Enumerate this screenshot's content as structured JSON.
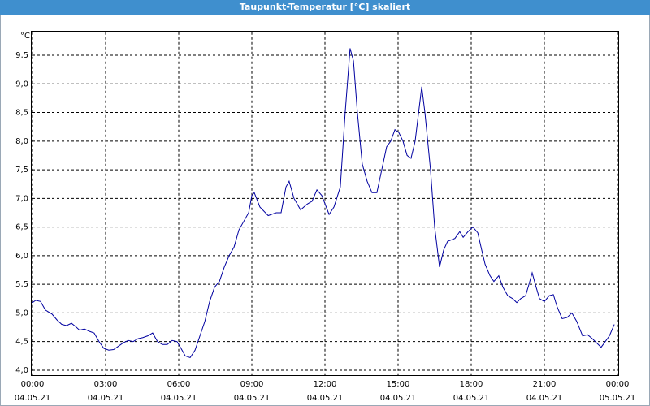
{
  "chart_data": {
    "type": "line",
    "title": "Taupunkt-Temperatur [°C] skaliert",
    "y_unit": "°C",
    "grid": true,
    "xlim": [
      0,
      24
    ],
    "ylim": [
      3.9,
      9.9
    ],
    "xticks": [
      {
        "value": 0,
        "label": "00:00"
      },
      {
        "value": 3,
        "label": "03:00"
      },
      {
        "value": 6,
        "label": "06:00"
      },
      {
        "value": 9,
        "label": "09:00"
      },
      {
        "value": 12,
        "label": "12:00"
      },
      {
        "value": 15,
        "label": "15:00"
      },
      {
        "value": 18,
        "label": "18:00"
      },
      {
        "value": 21,
        "label": "21:00"
      },
      {
        "value": 24,
        "label": "00:00"
      }
    ],
    "xtick_dates": [
      "04.05.21",
      "04.05.21",
      "04.05.21",
      "04.05.21",
      "04.05.21",
      "04.05.21",
      "04.05.21",
      "04.05.21",
      "05.05.21"
    ],
    "yticks": [
      {
        "value": 4.0,
        "label": "4,0"
      },
      {
        "value": 4.5,
        "label": "4,5"
      },
      {
        "value": 5.0,
        "label": "5,0"
      },
      {
        "value": 5.5,
        "label": "5,5"
      },
      {
        "value": 6.0,
        "label": "6,0"
      },
      {
        "value": 6.5,
        "label": "6,5"
      },
      {
        "value": 7.0,
        "label": "7,0"
      },
      {
        "value": 7.5,
        "label": "7,5"
      },
      {
        "value": 8.0,
        "label": "8,0"
      },
      {
        "value": 8.5,
        "label": "8,5"
      },
      {
        "value": 9.0,
        "label": "9,0"
      },
      {
        "value": 9.5,
        "label": "9,5"
      }
    ],
    "x": [
      0,
      0.13,
      0.33,
      0.53,
      0.8,
      1,
      1.2,
      1.4,
      1.6,
      1.8,
      1.93,
      2.13,
      2.33,
      2.53,
      2.73,
      2.93,
      3.13,
      3.33,
      3.53,
      3.73,
      3.93,
      4.13,
      4.33,
      4.53,
      4.73,
      4.93,
      5.13,
      5.33,
      5.53,
      5.73,
      5.93,
      6.07,
      6.27,
      6.47,
      6.67,
      6.87,
      7.07,
      7.27,
      7.47,
      7.67,
      7.87,
      8.07,
      8.27,
      8.47,
      8.67,
      8.87,
      9,
      9.1,
      9.33,
      9.67,
      10,
      10.2,
      10.4,
      10.53,
      10.73,
      11,
      11.27,
      11.47,
      11.67,
      11.87,
      12.17,
      12.37,
      12.63,
      12.83,
      13.03,
      13.17,
      13.33,
      13.53,
      13.73,
      13.93,
      14.13,
      14.33,
      14.53,
      14.7,
      14.87,
      15.03,
      15.2,
      15.37,
      15.53,
      15.7,
      15.97,
      16.1,
      16.33,
      16.5,
      16.7,
      16.87,
      17.03,
      17.33,
      17.53,
      17.67,
      17.87,
      18.07,
      18.27,
      18.43,
      18.57,
      18.77,
      18.93,
      19.13,
      19.3,
      19.5,
      19.7,
      19.87,
      20.03,
      20.23,
      20.37,
      20.5,
      20.63,
      20.8,
      21,
      21.2,
      21.37,
      21.53,
      21.73,
      21.93,
      22.13,
      22.33,
      22.57,
      22.77,
      22.97,
      23.33,
      23.67,
      23.87
    ],
    "series": [
      {
        "color": "#0000a0",
        "values": [
          5.18,
          5.22,
          5.2,
          5.05,
          4.98,
          4.88,
          4.8,
          4.78,
          4.82,
          4.75,
          4.7,
          4.72,
          4.68,
          4.65,
          4.5,
          4.38,
          4.35,
          4.36,
          4.42,
          4.48,
          4.52,
          4.5,
          4.55,
          4.57,
          4.6,
          4.65,
          4.5,
          4.45,
          4.45,
          4.52,
          4.5,
          4.4,
          4.25,
          4.22,
          4.35,
          4.6,
          4.85,
          5.2,
          5.45,
          5.55,
          5.8,
          6.0,
          6.15,
          6.45,
          6.6,
          6.75,
          7.05,
          7.1,
          6.85,
          6.7,
          6.75,
          6.75,
          7.2,
          7.3,
          7.0,
          6.8,
          6.9,
          6.95,
          7.15,
          7.05,
          6.72,
          6.85,
          7.2,
          8.5,
          9.62,
          9.4,
          8.5,
          7.6,
          7.3,
          7.1,
          7.1,
          7.5,
          7.9,
          8.0,
          8.2,
          8.15,
          8.0,
          7.75,
          7.7,
          8.0,
          8.95,
          8.5,
          7.5,
          6.5,
          5.8,
          6.1,
          6.25,
          6.3,
          6.42,
          6.32,
          6.42,
          6.5,
          6.4,
          6.1,
          5.85,
          5.65,
          5.55,
          5.65,
          5.45,
          5.3,
          5.25,
          5.18,
          5.25,
          5.3,
          5.5,
          5.7,
          5.5,
          5.25,
          5.2,
          5.3,
          5.32,
          5.1,
          4.9,
          4.92,
          5.0,
          4.85,
          4.6,
          4.62,
          4.55,
          4.4,
          4.6,
          4.8
        ]
      }
    ]
  }
}
